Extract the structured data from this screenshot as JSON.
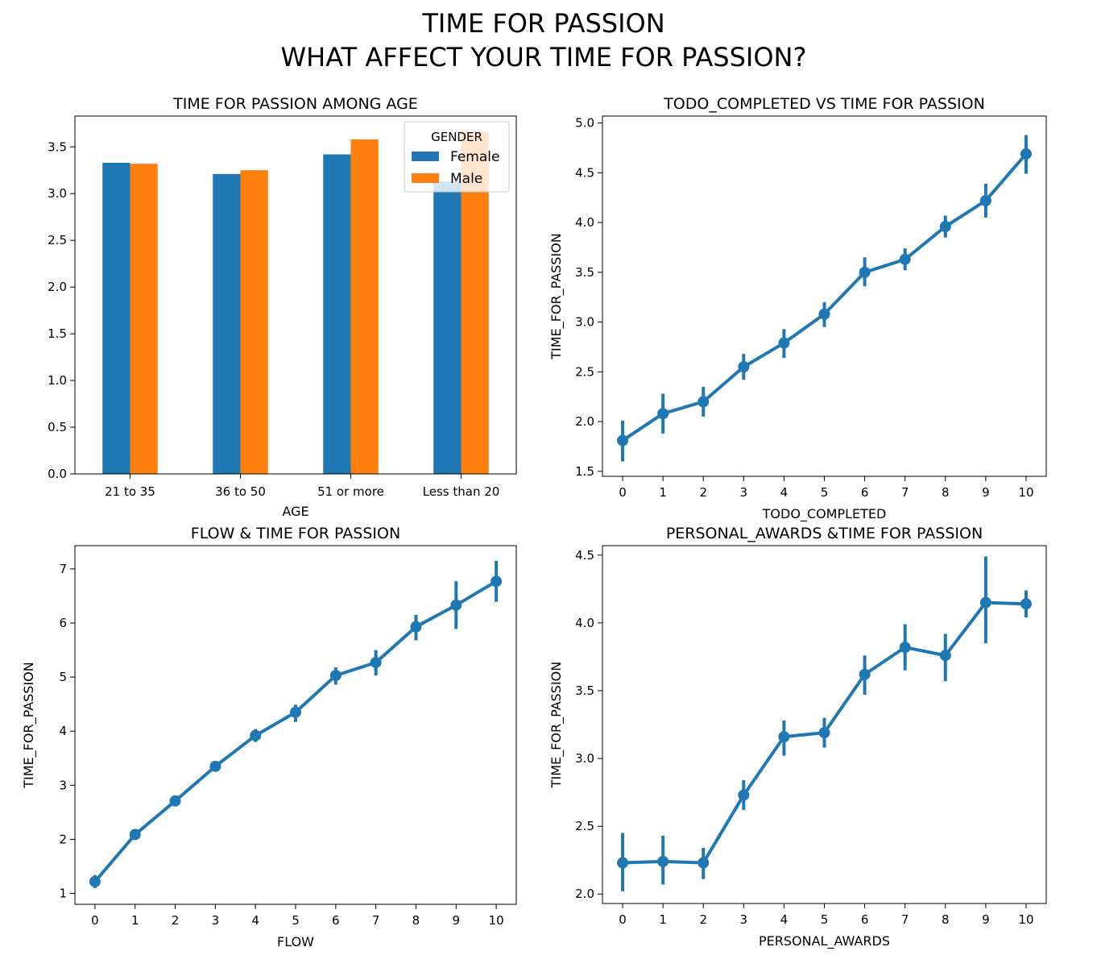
{
  "figure": {
    "title_line1": "TIME FOR PASSION",
    "title_line2": "WHAT AFFECT YOUR TIME FOR PASSION?"
  },
  "colors": {
    "female": "#1f77b4",
    "male": "#ff7f0e",
    "line": "#1f77b4"
  },
  "chart_data": [
    {
      "type": "bar",
      "title": "TIME FOR PASSION AMONG AGE",
      "xlabel": "AGE",
      "ylabel": "",
      "categories": [
        "21 to 35",
        "36 to 50",
        "51 or more",
        "Less than 20"
      ],
      "series": [
        {
          "name": "Female",
          "values": [
            3.33,
            3.21,
            3.42,
            3.13
          ]
        },
        {
          "name": "Male",
          "values": [
            3.32,
            3.25,
            3.58,
            3.66
          ]
        }
      ],
      "ylim": [
        0,
        3.83
      ],
      "yticks": [
        "0.0",
        "0.5",
        "1.0",
        "1.5",
        "2.0",
        "2.5",
        "3.0",
        "3.5"
      ],
      "legend": {
        "title": "GENDER",
        "position": "top-right"
      }
    },
    {
      "type": "line",
      "title": "TODO_COMPLETED VS TIME FOR PASSION",
      "xlabel": "TODO_COMPLETED",
      "ylabel": "TIME_FOR_PASSION",
      "x": [
        "0",
        "1",
        "2",
        "3",
        "4",
        "5",
        "6",
        "7",
        "8",
        "9",
        "10"
      ],
      "values": [
        1.81,
        2.08,
        2.2,
        2.55,
        2.79,
        3.08,
        3.5,
        3.63,
        3.96,
        4.22,
        4.69
      ],
      "ci_low": [
        1.6,
        1.88,
        2.05,
        2.42,
        2.64,
        2.95,
        3.36,
        3.52,
        3.85,
        4.05,
        4.49
      ],
      "ci_high": [
        2.01,
        2.28,
        2.35,
        2.68,
        2.93,
        3.2,
        3.65,
        3.74,
        4.07,
        4.39,
        4.88
      ],
      "ylim": [
        1.45,
        5.07
      ],
      "yticks": [
        "1.5",
        "2.0",
        "2.5",
        "3.0",
        "3.5",
        "4.0",
        "4.5",
        "5.0"
      ]
    },
    {
      "type": "line",
      "title": "FLOW & TIME FOR PASSION",
      "xlabel": "FLOW",
      "ylabel": "TIME_FOR_PASSION",
      "x": [
        "0",
        "1",
        "2",
        "3",
        "4",
        "5",
        "6",
        "7",
        "8",
        "9",
        "10"
      ],
      "values": [
        1.22,
        2.09,
        2.71,
        3.35,
        3.92,
        4.35,
        5.03,
        5.27,
        5.93,
        6.33,
        6.77
      ],
      "ci_low": [
        1.1,
        2.0,
        2.62,
        3.26,
        3.8,
        4.17,
        4.86,
        5.03,
        5.68,
        5.89,
        6.39
      ],
      "ci_high": [
        1.34,
        2.18,
        2.8,
        3.44,
        4.04,
        4.49,
        5.18,
        5.5,
        6.15,
        6.77,
        7.15
      ],
      "ylim": [
        0.8,
        7.43
      ],
      "yticks": [
        "1",
        "2",
        "3",
        "4",
        "5",
        "6",
        "7"
      ]
    },
    {
      "type": "line",
      "title": "PERSONAL_AWARDS &TIME FOR PASSION",
      "xlabel": "PERSONAL_AWARDS",
      "ylabel": "TIME_FOR_PASSION",
      "x": [
        "0",
        "1",
        "2",
        "3",
        "4",
        "5",
        "6",
        "7",
        "8",
        "9",
        "10"
      ],
      "values": [
        2.23,
        2.24,
        2.23,
        2.73,
        3.16,
        3.19,
        3.62,
        3.82,
        3.76,
        4.15,
        4.14
      ],
      "ci_low": [
        2.02,
        2.07,
        2.11,
        2.62,
        3.02,
        3.08,
        3.47,
        3.65,
        3.57,
        3.85,
        4.04
      ],
      "ci_high": [
        2.45,
        2.43,
        2.34,
        2.84,
        3.28,
        3.3,
        3.76,
        3.99,
        3.92,
        4.49,
        4.24
      ],
      "ylim": [
        1.93,
        4.57
      ],
      "yticks": [
        "2.0",
        "2.5",
        "3.0",
        "3.5",
        "4.0",
        "4.5"
      ]
    }
  ]
}
